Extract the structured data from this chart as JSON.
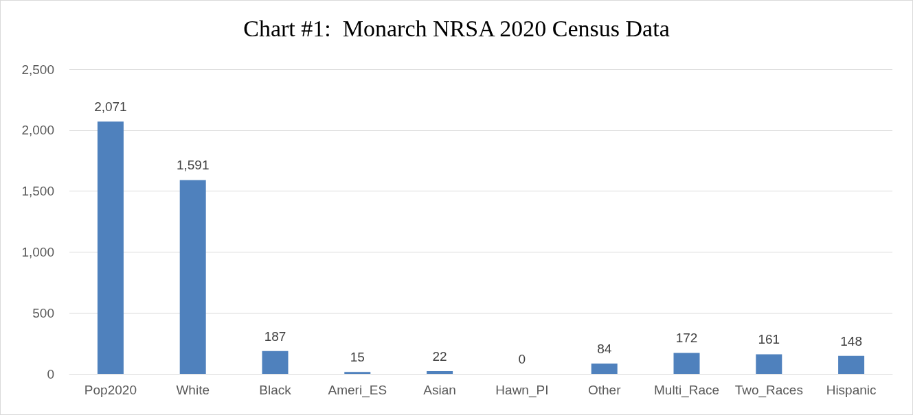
{
  "chart_data": {
    "type": "bar",
    "title": "Chart #1:  Monarch NRSA 2020 Census Data",
    "categories": [
      "Pop2020",
      "White",
      "Black",
      "Ameri_ES",
      "Asian",
      "Hawn_PI",
      "Other",
      "Multi_Race",
      "Two_Races",
      "Hispanic"
    ],
    "values": [
      2071,
      1591,
      187,
      15,
      22,
      0,
      84,
      172,
      161,
      148
    ],
    "value_labels": [
      "2,071",
      "1,591",
      "187",
      "15",
      "22",
      "0",
      "84",
      "172",
      "161",
      "148"
    ],
    "color": "#4f81bd",
    "ylim": [
      0,
      2500
    ],
    "yticks": [
      0,
      500,
      {
        "value": 1000,
        "label": "1,000"
      },
      {
        "value": 1500,
        "label": "1,500"
      },
      {
        "value": 2000,
        "label": "2,000"
      },
      {
        "value": 2500,
        "label": "2,500"
      }
    ],
    "grid": "y"
  }
}
